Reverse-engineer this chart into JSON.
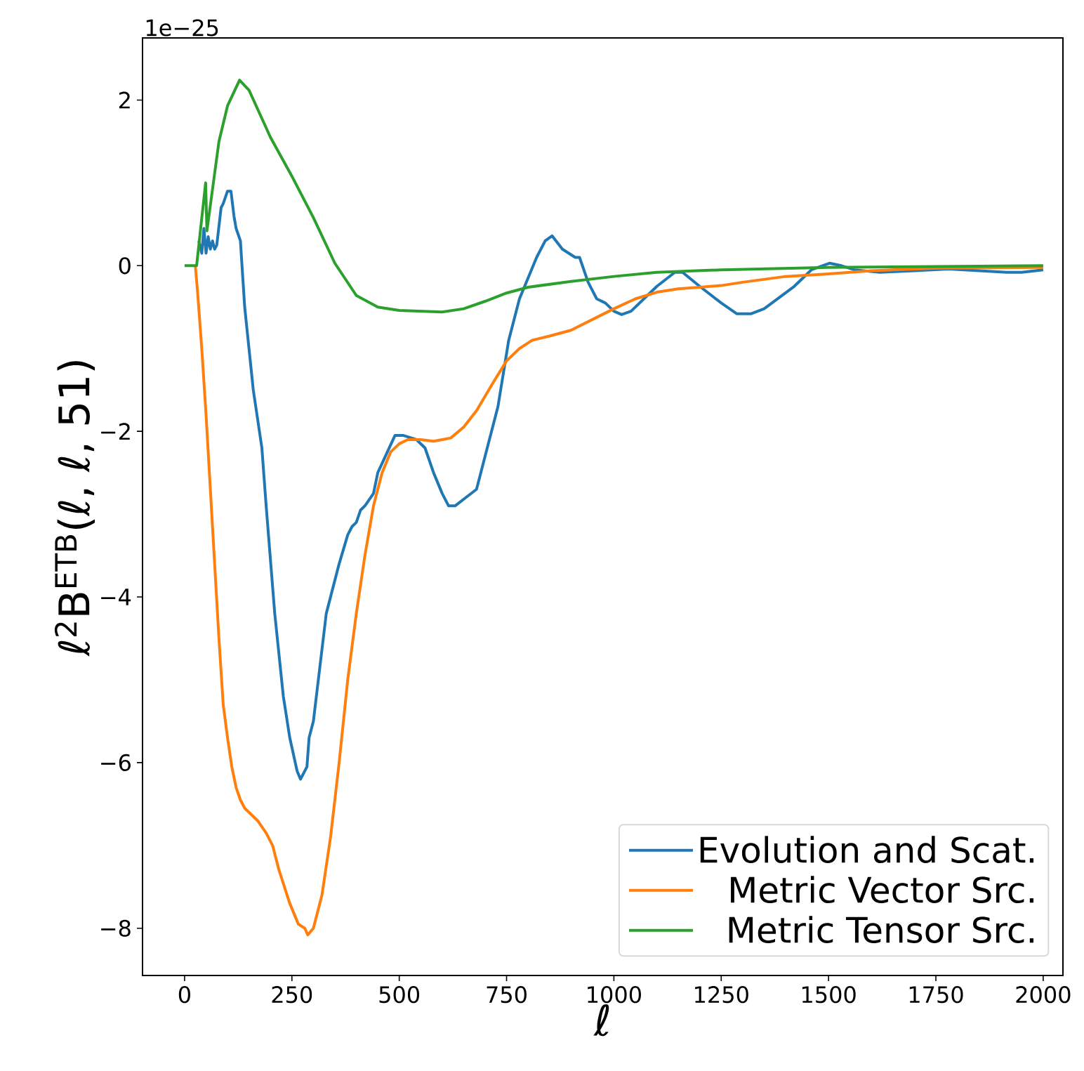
{
  "chart_data": {
    "type": "line",
    "xlabel": "ℓ",
    "ylabel": "ℓ$^{2}$B$^{ETB}$(ℓ, ℓ, 51)",
    "annotations": [
      "1e−25"
    ],
    "xlim": [
      -98,
      2046
    ],
    "ylim": [
      -8.57,
      2.75
    ],
    "xticks": [
      0,
      250,
      500,
      750,
      1000,
      1250,
      1500,
      1750,
      2000
    ],
    "yticks": [
      {
        "value": -8,
        "label": "−8"
      },
      {
        "value": -6,
        "label": "−6"
      },
      {
        "value": -4,
        "label": "−4"
      },
      {
        "value": -2,
        "label": "−2"
      },
      0,
      2
    ],
    "legend": "bottom right",
    "grid": false,
    "line_style": "solid",
    "marker": "none",
    "series": [
      {
        "name": "Evolution and Scat.",
        "color": "#1f77b4",
        "x": [
          33,
          40,
          45,
          50,
          55,
          60,
          65,
          70,
          75,
          85,
          90,
          100,
          108,
          115,
          120,
          130,
          140,
          160,
          180,
          190,
          210,
          230,
          245,
          262,
          270,
          285,
          290,
          300,
          330,
          360,
          380,
          390,
          400,
          410,
          420,
          440,
          450,
          490,
          510,
          540,
          560,
          580,
          600,
          615,
          630,
          655,
          680,
          730,
          755,
          780,
          820,
          840,
          856,
          880,
          910,
          920,
          940,
          960,
          980,
          1000,
          1018,
          1040,
          1100,
          1142,
          1160,
          1200,
          1250,
          1286,
          1320,
          1350,
          1420,
          1460,
          1502,
          1530,
          1560,
          1620,
          1700,
          1780,
          1915,
          1950,
          2000
        ],
        "values": [
          0.3,
          0.15,
          0.45,
          0.15,
          0.35,
          0.2,
          0.3,
          0.2,
          0.25,
          0.7,
          0.75,
          0.9,
          0.9,
          0.6,
          0.45,
          0.3,
          -0.5,
          -1.5,
          -2.2,
          -2.9,
          -4.2,
          -5.2,
          -5.7,
          -6.1,
          -6.2,
          -6.05,
          -5.7,
          -5.5,
          -4.2,
          -3.6,
          -3.25,
          -3.15,
          -3.1,
          -2.95,
          -2.9,
          -2.75,
          -2.5,
          -2.05,
          -2.05,
          -2.1,
          -2.2,
          -2.5,
          -2.75,
          -2.9,
          -2.9,
          -2.8,
          -2.7,
          -1.7,
          -0.9,
          -0.4,
          0.1,
          0.3,
          0.36,
          0.2,
          0.1,
          0.1,
          -0.2,
          -0.4,
          -0.45,
          -0.55,
          -0.59,
          -0.55,
          -0.25,
          -0.08,
          -0.08,
          -0.25,
          -0.45,
          -0.58,
          -0.58,
          -0.52,
          -0.25,
          -0.05,
          0.03,
          0.0,
          -0.05,
          -0.08,
          -0.06,
          -0.04,
          -0.08,
          -0.08,
          -0.05
        ]
      },
      {
        "name": "Metric Vector Src.",
        "color": "#ff7f0e",
        "x": [
          25,
          30,
          40,
          50,
          60,
          70,
          80,
          90,
          100,
          110,
          120,
          130,
          140,
          150,
          170,
          190,
          205,
          220,
          245,
          265,
          280,
          287,
          300,
          320,
          340,
          360,
          380,
          400,
          420,
          440,
          460,
          480,
          500,
          520,
          550,
          580,
          600,
          620,
          650,
          680,
          720,
          750,
          780,
          810,
          850,
          900,
          950,
          1000,
          1050,
          1100,
          1150,
          1200,
          1250,
          1300,
          1400,
          1500,
          1600,
          1750,
          2000
        ],
        "values": [
          0,
          -0.3,
          -1.0,
          -1.8,
          -2.7,
          -3.6,
          -4.5,
          -5.3,
          -5.7,
          -6.05,
          -6.3,
          -6.45,
          -6.55,
          -6.6,
          -6.7,
          -6.85,
          -7.0,
          -7.3,
          -7.7,
          -7.95,
          -8.0,
          -8.08,
          -8.0,
          -7.6,
          -6.9,
          -6.0,
          -5.0,
          -4.2,
          -3.5,
          -2.9,
          -2.5,
          -2.25,
          -2.15,
          -2.1,
          -2.1,
          -2.12,
          -2.1,
          -2.08,
          -1.95,
          -1.75,
          -1.4,
          -1.15,
          -1.0,
          -0.9,
          -0.85,
          -0.78,
          -0.65,
          -0.52,
          -0.4,
          -0.32,
          -0.28,
          -0.26,
          -0.24,
          -0.2,
          -0.13,
          -0.1,
          -0.06,
          -0.03,
          -0.02
        ]
      },
      {
        "name": "Metric Tensor Src.",
        "color": "#2ca02c",
        "x": [
          0,
          28,
          49,
          52,
          80,
          100,
          128,
          150,
          200,
          250,
          300,
          350,
          400,
          450,
          500,
          600,
          650,
          700,
          750,
          800,
          900,
          1000,
          1100,
          1250,
          1500,
          2000
        ],
        "values": [
          0,
          0,
          1.0,
          0.42,
          1.5,
          1.93,
          2.24,
          2.12,
          1.55,
          1.08,
          0.58,
          0.03,
          -0.36,
          -0.5,
          -0.54,
          -0.56,
          -0.52,
          -0.43,
          -0.33,
          -0.26,
          -0.19,
          -0.13,
          -0.08,
          -0.05,
          -0.02,
          0
        ]
      }
    ]
  }
}
